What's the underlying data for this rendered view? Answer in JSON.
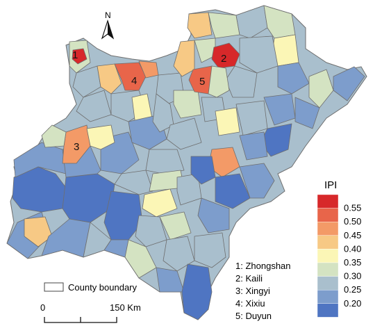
{
  "north": {
    "label": "N"
  },
  "legend": {
    "title": "IPI",
    "classes": [
      {
        "label": "0.55",
        "color": "#d7282a"
      },
      {
        "label": "0.50",
        "color": "#e8654a"
      },
      {
        "label": "0.45",
        "color": "#f39a67"
      },
      {
        "label": "0.40",
        "color": "#f7c985"
      },
      {
        "label": "0.35",
        "color": "#fbf6b6"
      },
      {
        "label": "0.30",
        "color": "#d4e3c2"
      },
      {
        "label": "0.25",
        "color": "#a9bfcd"
      },
      {
        "label": "0.20",
        "color": "#7d9dcc"
      },
      {
        "label": "",
        "color": "#4f75c2"
      }
    ]
  },
  "cities": [
    {
      "num": "1",
      "label": "1: Zhongshan"
    },
    {
      "num": "2",
      "label": "2: Kaili"
    },
    {
      "num": "3",
      "label": "3: Xingyi"
    },
    {
      "num": "4",
      "label": "4: Xixiu"
    },
    {
      "num": "5",
      "label": "5: Duyun"
    }
  ],
  "boundary_legend": {
    "label": "County boundary"
  },
  "scale": {
    "start": "0",
    "end": "150 Km"
  }
}
